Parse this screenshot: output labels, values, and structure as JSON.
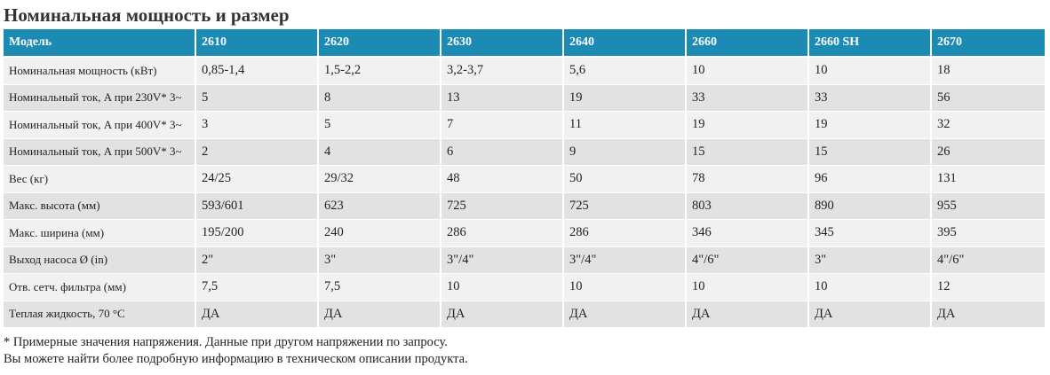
{
  "title": "Номинальная мощность и размер",
  "table": {
    "headers": [
      "Модель",
      "2610",
      "2620",
      "2630",
      "2640",
      "2660",
      "2660 SH",
      "2670"
    ],
    "rows": [
      [
        "Номинальная мощность (кВт)",
        "0,85-1,4",
        "1,5-2,2",
        "3,2-3,7",
        "5,6",
        "10",
        "10",
        "18"
      ],
      [
        "Номинальный ток, A при 230V* 3~",
        "5",
        "8",
        "13",
        "19",
        "33",
        "33",
        "56"
      ],
      [
        "Номинальный ток, A при 400V* 3~",
        "3",
        "5",
        "7",
        "11",
        "19",
        "19",
        "32"
      ],
      [
        "Номинальный ток, A при 500V* 3~",
        "2",
        "4",
        "6",
        "9",
        "15",
        "15",
        "26"
      ],
      [
        "Вес (кг)",
        "24/25",
        "29/32",
        "48",
        "50",
        "78",
        "96",
        "131"
      ],
      [
        "Макс. высота (мм)",
        "593/601",
        "623",
        "725",
        "725",
        "803",
        "890",
        "955"
      ],
      [
        "Макс. ширина (мм)",
        "195/200",
        "240",
        "286",
        "286",
        "346",
        "345",
        "395"
      ],
      [
        "Выход насоса Ø (in)",
        "2\"",
        "3\"",
        "3\"/4\"",
        "3\"/4\"",
        "4\"/6\"",
        "3\"",
        "4\"/6\""
      ],
      [
        "Отв. сетч. фильтра (мм)",
        "7,5",
        "7,5",
        "10",
        "10",
        "10",
        "10",
        "12"
      ],
      [
        "Теплая жидкость, 70 °C",
        "ДА",
        "ДА",
        "ДА",
        "ДА",
        "ДА",
        "ДА",
        "ДА"
      ]
    ]
  },
  "notes": [
    "* Примерные значения напряжения. Данные при другом напряжении по запросу.",
    "Вы можете найти более подробную информацию в техническом описании продукта."
  ]
}
